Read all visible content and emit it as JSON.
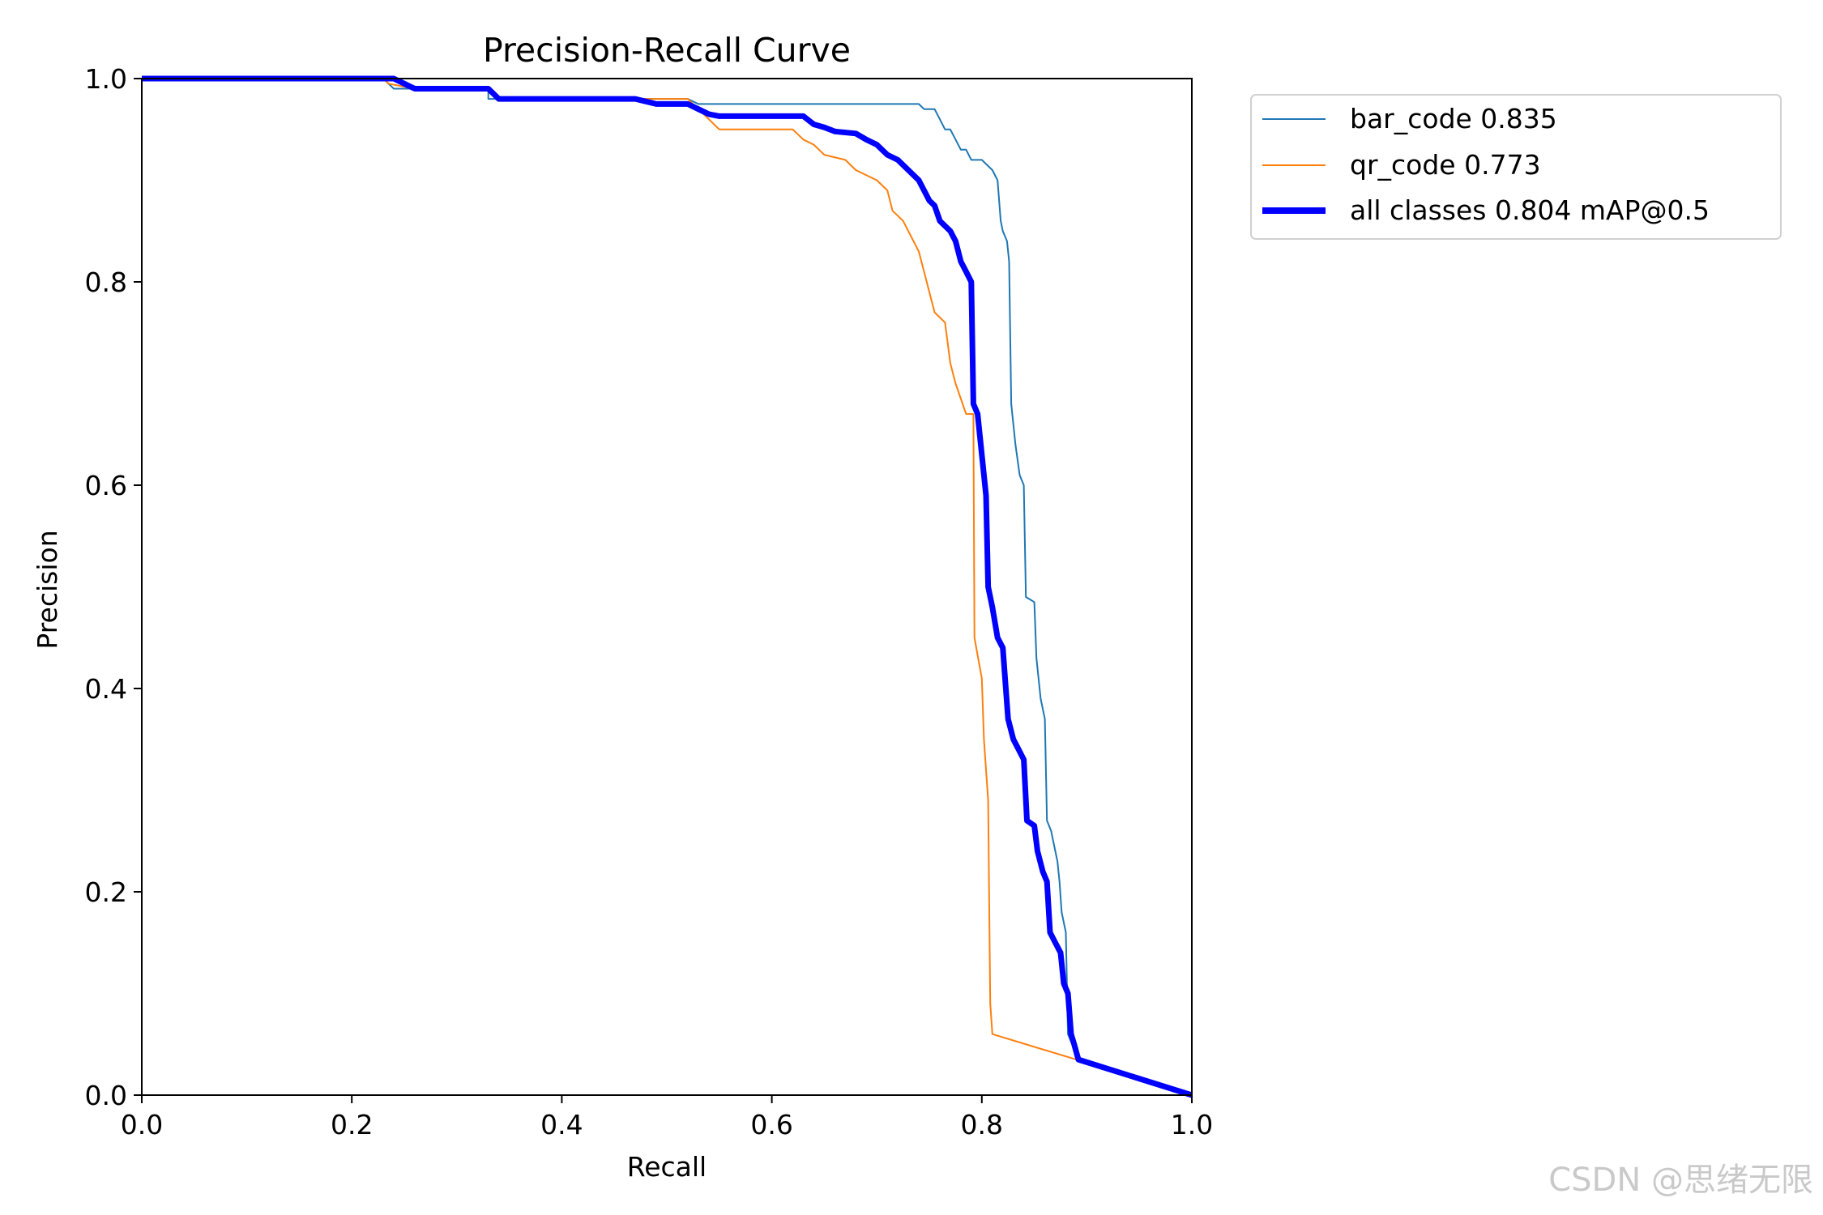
{
  "chart_data": {
    "type": "line",
    "title": "Precision-Recall Curve",
    "xlabel": "Recall",
    "ylabel": "Precision",
    "xlim": [
      0,
      1
    ],
    "ylim": [
      0,
      1
    ],
    "xticks": [
      "0.0",
      "0.2",
      "0.4",
      "0.6",
      "0.8",
      "1.0"
    ],
    "yticks": [
      "0.0",
      "0.2",
      "0.4",
      "0.6",
      "0.8",
      "1.0"
    ],
    "xtick_values": [
      0,
      0.2,
      0.4,
      0.6,
      0.8,
      1.0
    ],
    "ytick_values": [
      0,
      0.2,
      0.4,
      0.6,
      0.8,
      1.0
    ],
    "grid": false,
    "legend_position": "outside-top-right",
    "series": [
      {
        "name": "bar_code 0.835",
        "color": "#1f77b4",
        "weight": "thin",
        "points": [
          [
            0,
            1
          ],
          [
            0.23,
            1
          ],
          [
            0.24,
            0.99
          ],
          [
            0.33,
            0.99
          ],
          [
            0.33,
            0.98
          ],
          [
            0.34,
            0.98
          ],
          [
            0.52,
            0.98
          ],
          [
            0.53,
            0.975
          ],
          [
            0.74,
            0.975
          ],
          [
            0.745,
            0.97
          ],
          [
            0.755,
            0.97
          ],
          [
            0.76,
            0.96
          ],
          [
            0.765,
            0.95
          ],
          [
            0.77,
            0.95
          ],
          [
            0.775,
            0.94
          ],
          [
            0.78,
            0.93
          ],
          [
            0.785,
            0.93
          ],
          [
            0.79,
            0.92
          ],
          [
            0.8,
            0.92
          ],
          [
            0.81,
            0.91
          ],
          [
            0.815,
            0.9
          ],
          [
            0.818,
            0.86
          ],
          [
            0.82,
            0.85
          ],
          [
            0.824,
            0.84
          ],
          [
            0.826,
            0.82
          ],
          [
            0.828,
            0.68
          ],
          [
            0.832,
            0.64
          ],
          [
            0.836,
            0.61
          ],
          [
            0.84,
            0.6
          ],
          [
            0.842,
            0.49
          ],
          [
            0.85,
            0.485
          ],
          [
            0.852,
            0.43
          ],
          [
            0.856,
            0.39
          ],
          [
            0.86,
            0.37
          ],
          [
            0.862,
            0.27
          ],
          [
            0.866,
            0.26
          ],
          [
            0.868,
            0.25
          ],
          [
            0.872,
            0.23
          ],
          [
            0.874,
            0.21
          ],
          [
            0.876,
            0.18
          ],
          [
            0.88,
            0.16
          ],
          [
            0.882,
            0.06
          ],
          [
            0.886,
            0.05
          ],
          [
            0.89,
            0.035
          ],
          [
            1,
            0
          ]
        ]
      },
      {
        "name": "qr_code 0.773",
        "color": "#ff7f0e",
        "weight": "thin",
        "points": [
          [
            0,
            1
          ],
          [
            0.23,
            1
          ],
          [
            0.235,
            0.995
          ],
          [
            0.26,
            0.99
          ],
          [
            0.33,
            0.99
          ],
          [
            0.34,
            0.98
          ],
          [
            0.52,
            0.98
          ],
          [
            0.53,
            0.97
          ],
          [
            0.54,
            0.96
          ],
          [
            0.55,
            0.95
          ],
          [
            0.62,
            0.95
          ],
          [
            0.63,
            0.94
          ],
          [
            0.64,
            0.935
          ],
          [
            0.65,
            0.925
          ],
          [
            0.67,
            0.92
          ],
          [
            0.68,
            0.91
          ],
          [
            0.7,
            0.9
          ],
          [
            0.71,
            0.89
          ],
          [
            0.715,
            0.87
          ],
          [
            0.725,
            0.86
          ],
          [
            0.73,
            0.85
          ],
          [
            0.74,
            0.83
          ],
          [
            0.745,
            0.81
          ],
          [
            0.75,
            0.79
          ],
          [
            0.755,
            0.77
          ],
          [
            0.765,
            0.76
          ],
          [
            0.77,
            0.72
          ],
          [
            0.775,
            0.7
          ],
          [
            0.785,
            0.67
          ],
          [
            0.792,
            0.67
          ],
          [
            0.793,
            0.45
          ],
          [
            0.8,
            0.41
          ],
          [
            0.802,
            0.35
          ],
          [
            0.806,
            0.29
          ],
          [
            0.808,
            0.09
          ],
          [
            0.81,
            0.06
          ],
          [
            0.89,
            0.035
          ],
          [
            1,
            0
          ]
        ]
      },
      {
        "name": "all classes 0.804 mAP@0.5",
        "color": "#0000ff",
        "weight": "thick",
        "points": [
          [
            0,
            1
          ],
          [
            0.24,
            1
          ],
          [
            0.25,
            0.995
          ],
          [
            0.26,
            0.99
          ],
          [
            0.33,
            0.99
          ],
          [
            0.34,
            0.98
          ],
          [
            0.47,
            0.98
          ],
          [
            0.49,
            0.975
          ],
          [
            0.52,
            0.975
          ],
          [
            0.53,
            0.97
          ],
          [
            0.54,
            0.965
          ],
          [
            0.55,
            0.963
          ],
          [
            0.63,
            0.963
          ],
          [
            0.64,
            0.955
          ],
          [
            0.65,
            0.952
          ],
          [
            0.66,
            0.948
          ],
          [
            0.68,
            0.946
          ],
          [
            0.69,
            0.94
          ],
          [
            0.7,
            0.935
          ],
          [
            0.71,
            0.925
          ],
          [
            0.72,
            0.92
          ],
          [
            0.73,
            0.91
          ],
          [
            0.74,
            0.9
          ],
          [
            0.75,
            0.88
          ],
          [
            0.755,
            0.875
          ],
          [
            0.76,
            0.86
          ],
          [
            0.77,
            0.85
          ],
          [
            0.775,
            0.84
          ],
          [
            0.78,
            0.82
          ],
          [
            0.785,
            0.81
          ],
          [
            0.79,
            0.8
          ],
          [
            0.792,
            0.68
          ],
          [
            0.796,
            0.67
          ],
          [
            0.8,
            0.63
          ],
          [
            0.804,
            0.59
          ],
          [
            0.806,
            0.5
          ],
          [
            0.81,
            0.48
          ],
          [
            0.815,
            0.45
          ],
          [
            0.82,
            0.44
          ],
          [
            0.825,
            0.37
          ],
          [
            0.83,
            0.35
          ],
          [
            0.835,
            0.34
          ],
          [
            0.84,
            0.33
          ],
          [
            0.843,
            0.27
          ],
          [
            0.85,
            0.265
          ],
          [
            0.853,
            0.24
          ],
          [
            0.858,
            0.22
          ],
          [
            0.862,
            0.21
          ],
          [
            0.865,
            0.16
          ],
          [
            0.87,
            0.15
          ],
          [
            0.875,
            0.14
          ],
          [
            0.878,
            0.11
          ],
          [
            0.882,
            0.1
          ],
          [
            0.885,
            0.06
          ],
          [
            0.888,
            0.05
          ],
          [
            0.892,
            0.035
          ],
          [
            1,
            0
          ]
        ]
      }
    ]
  },
  "legend": {
    "items": [
      {
        "label": "bar_code 0.835",
        "color": "#1f77b4"
      },
      {
        "label": "qr_code 0.773",
        "color": "#ff7f0e"
      },
      {
        "label": "all classes 0.804 mAP@0.5",
        "color": "#0000ff"
      }
    ]
  },
  "watermark": "CSDN @思绪无限"
}
